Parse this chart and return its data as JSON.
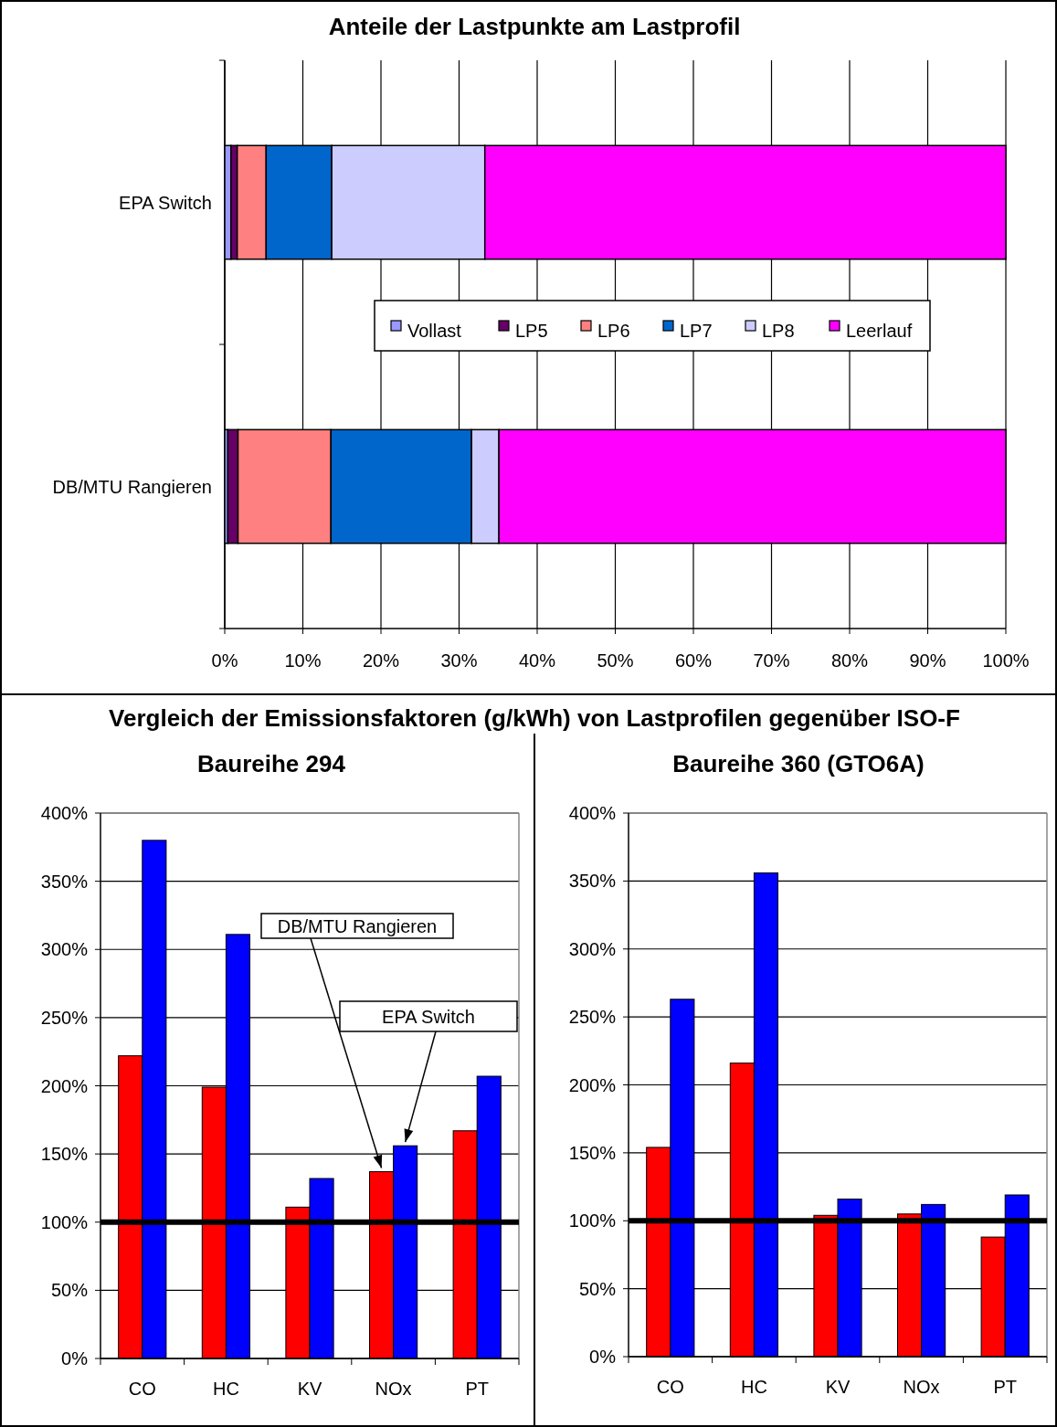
{
  "chart_data": [
    {
      "type": "bar",
      "title": "Anteile der Lastpunkte am Lastprofil",
      "orientation": "horizontal",
      "stacked": true,
      "categories": [
        "EPA Switch",
        "DB/MTU Rangieren"
      ],
      "series": [
        {
          "name": "Vollast",
          "color": "#9999ff",
          "values": [
            0.8,
            0.4
          ]
        },
        {
          "name": "LP5",
          "color": "#660066",
          "values": [
            0.8,
            1.3
          ]
        },
        {
          "name": "LP6",
          "color": "#ff8080",
          "values": [
            3.7,
            11.9
          ]
        },
        {
          "name": "LP7",
          "color": "#0066cc",
          "values": [
            8.4,
            18.0
          ]
        },
        {
          "name": "LP8",
          "color": "#ccccff",
          "values": [
            19.6,
            3.5
          ]
        },
        {
          "name": "Leerlauf",
          "color": "#ff00ff",
          "values": [
            66.7,
            64.9
          ]
        }
      ],
      "xlim": [
        0,
        100
      ],
      "xticks": [
        {
          "value": 0,
          "label": "0%"
        },
        {
          "value": 10,
          "label": "10%"
        },
        {
          "value": 20,
          "label": "20%"
        },
        {
          "value": 30,
          "label": "30%"
        },
        {
          "value": 40,
          "label": "40%"
        },
        {
          "value": 50,
          "label": "50%"
        },
        {
          "value": 60,
          "label": "60%"
        },
        {
          "value": 70,
          "label": "70%"
        },
        {
          "value": 80,
          "label": "80%"
        },
        {
          "value": 90,
          "label": "90%"
        },
        {
          "value": 100,
          "label": "100%"
        }
      ],
      "grid": "x",
      "legend": "center"
    },
    {
      "type": "bar",
      "title": "Vergleich der Emissionsfaktoren (g/kWh) von Lastprofilen gegenüber ISO-F",
      "subtitle": "Baureihe 294",
      "categories": [
        "CO",
        "HC",
        "KV",
        "NOx",
        "PT"
      ],
      "series": [
        {
          "name": "DB/MTU Rangieren",
          "color": "#ff0000",
          "values": [
            222,
            199,
            111,
            137,
            167
          ]
        },
        {
          "name": "EPA Switch",
          "color": "#0000ff",
          "values": [
            380,
            311,
            132,
            156,
            207
          ]
        }
      ],
      "ylim": [
        0,
        400
      ],
      "yticks": [
        {
          "value": 0,
          "label": "0%"
        },
        {
          "value": 50,
          "label": "50%"
        },
        {
          "value": 100,
          "label": "100%"
        },
        {
          "value": 150,
          "label": "150%"
        },
        {
          "value": 200,
          "label": "200%"
        },
        {
          "value": 250,
          "label": "250%"
        },
        {
          "value": 300,
          "label": "300%"
        },
        {
          "value": 350,
          "label": "350%"
        },
        {
          "value": 400,
          "label": "400%"
        }
      ],
      "grid": "y",
      "legend": false,
      "ref_lines": [
        {
          "axis": "y",
          "value": 100,
          "color": "#000000"
        }
      ]
    },
    {
      "type": "bar",
      "title": "Baureihe 360 (GTO6A)",
      "categories": [
        "CO",
        "HC",
        "KV",
        "NOx",
        "PT"
      ],
      "series": [
        {
          "color": "#ff0000",
          "values": [
            154,
            216,
            104,
            105,
            88
          ]
        },
        {
          "color": "#0000ff",
          "values": [
            263,
            356,
            116,
            112,
            119
          ]
        }
      ],
      "ylim": [
        0,
        400
      ],
      "yticks": [
        {
          "value": 0,
          "label": "0%"
        },
        {
          "value": 50,
          "label": "50%"
        },
        {
          "value": 100,
          "label": "100%"
        },
        {
          "value": 150,
          "label": "150%"
        },
        {
          "value": 200,
          "label": "200%"
        },
        {
          "value": 250,
          "label": "250%"
        },
        {
          "value": 300,
          "label": "300%"
        },
        {
          "value": 350,
          "label": "350%"
        },
        {
          "value": 400,
          "label": "400%"
        }
      ],
      "grid": "y",
      "legend": false,
      "ref_lines": [
        {
          "axis": "y",
          "value": 100,
          "color": "#000000"
        }
      ]
    }
  ]
}
